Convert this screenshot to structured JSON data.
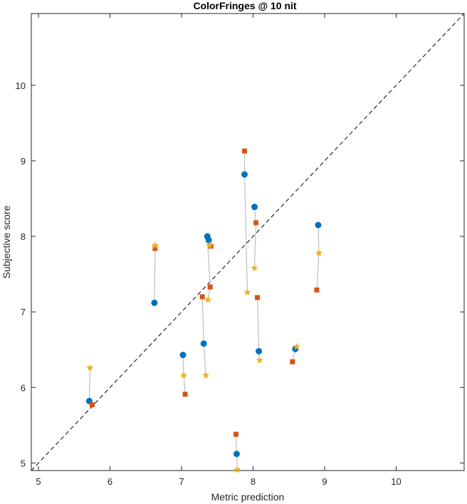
{
  "chart_data": {
    "type": "scatter",
    "title": "ColorFringes @ 10 nit",
    "xlabel": "Metric prediction",
    "ylabel": "Subjective score",
    "xlim": [
      4.9,
      10.95
    ],
    "ylim": [
      4.9,
      10.95
    ],
    "xticks": [
      5,
      6,
      7,
      8,
      9,
      10
    ],
    "yticks": [
      5,
      6,
      7,
      8,
      9,
      10
    ],
    "grid": false,
    "reference_line": {
      "from": [
        4.9,
        4.9
      ],
      "to": [
        10.95,
        10.95
      ],
      "style": "dashed",
      "color": "#000000"
    },
    "series": [
      {
        "marker": "circle",
        "color": "#0072BD",
        "points": [
          {
            "x": 5.71,
            "y": 5.82
          },
          {
            "x": 6.62,
            "y": 7.12
          },
          {
            "x": 7.02,
            "y": 6.43
          },
          {
            "x": 7.31,
            "y": 6.58
          },
          {
            "x": 7.36,
            "y": 8.0
          },
          {
            "x": 7.38,
            "y": 7.95
          },
          {
            "x": 7.77,
            "y": 5.12
          },
          {
            "x": 7.88,
            "y": 8.82
          },
          {
            "x": 8.02,
            "y": 8.39
          },
          {
            "x": 8.08,
            "y": 6.48
          },
          {
            "x": 8.59,
            "y": 6.51
          },
          {
            "x": 8.91,
            "y": 8.15
          }
        ]
      },
      {
        "marker": "square",
        "color": "#D95319",
        "points": [
          {
            "x": 5.75,
            "y": 5.77
          },
          {
            "x": 6.63,
            "y": 7.84
          },
          {
            "x": 7.05,
            "y": 5.91
          },
          {
            "x": 7.29,
            "y": 7.2
          },
          {
            "x": 7.4,
            "y": 7.33
          },
          {
            "x": 7.41,
            "y": 7.87
          },
          {
            "x": 7.76,
            "y": 5.38
          },
          {
            "x": 7.88,
            "y": 9.13
          },
          {
            "x": 8.04,
            "y": 8.18
          },
          {
            "x": 8.06,
            "y": 7.19
          },
          {
            "x": 8.55,
            "y": 6.34
          },
          {
            "x": 8.89,
            "y": 7.29
          }
        ]
      },
      {
        "marker": "star",
        "color": "#EDB120",
        "points": [
          {
            "x": 5.72,
            "y": 6.26
          },
          {
            "x": 6.63,
            "y": 7.88
          },
          {
            "x": 7.03,
            "y": 6.16
          },
          {
            "x": 7.34,
            "y": 6.16
          },
          {
            "x": 7.37,
            "y": 7.16
          },
          {
            "x": 7.39,
            "y": 7.88
          },
          {
            "x": 7.78,
            "y": 4.91
          },
          {
            "x": 7.92,
            "y": 7.26
          },
          {
            "x": 8.02,
            "y": 7.58
          },
          {
            "x": 8.09,
            "y": 6.36
          },
          {
            "x": 8.61,
            "y": 6.54
          },
          {
            "x": 8.92,
            "y": 7.78
          }
        ]
      }
    ],
    "connectors": {
      "color": "#bfbfbf",
      "style": "solid"
    }
  }
}
